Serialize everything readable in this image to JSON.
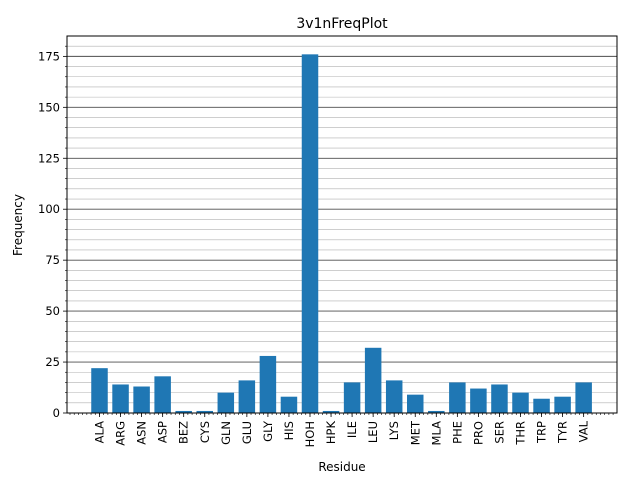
{
  "chart_data": {
    "type": "bar",
    "title": "3v1nFreqPlot",
    "xlabel": "Residue",
    "ylabel": "Frequency",
    "ylim": [
      0,
      185
    ],
    "yticks": [
      0,
      25,
      50,
      75,
      100,
      125,
      150,
      175
    ],
    "grid": "horizontal major and minor",
    "bar_color": "#1f77b4",
    "categories": [
      "ALA",
      "ARG",
      "ASN",
      "ASP",
      "BEZ",
      "CYS",
      "GLN",
      "GLU",
      "GLY",
      "HIS",
      "HOH",
      "HPK",
      "ILE",
      "LEU",
      "LYS",
      "MET",
      "MLA",
      "PHE",
      "PRO",
      "SER",
      "THR",
      "TRP",
      "TYR",
      "VAL"
    ],
    "values": [
      22,
      14,
      13,
      18,
      1,
      1,
      10,
      16,
      28,
      8,
      176,
      1,
      15,
      32,
      16,
      9,
      1,
      15,
      12,
      14,
      10,
      7,
      8,
      15
    ]
  }
}
